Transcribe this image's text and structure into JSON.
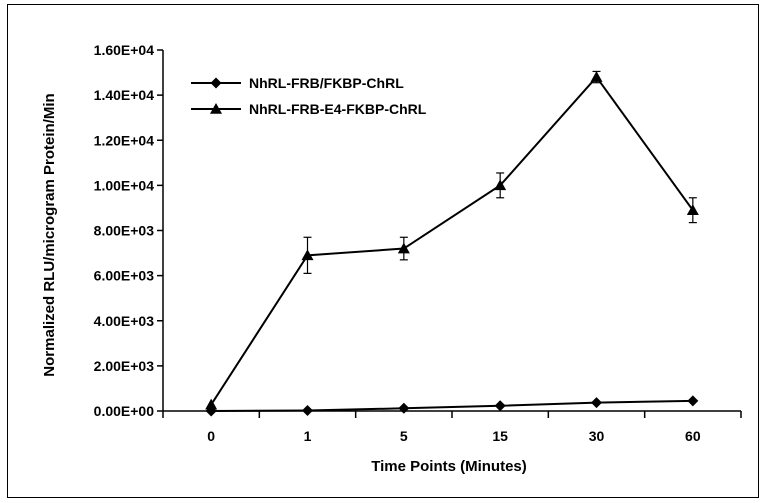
{
  "chart_data": {
    "type": "line",
    "title": "",
    "xlabel": "Time Points (Minutes)",
    "ylabel": "Normalized RLU/microgram Protein/Min",
    "categories": [
      "0",
      "1",
      "5",
      "15",
      "30",
      "60"
    ],
    "ylim": [
      0,
      16000
    ],
    "y_ticks": [
      0,
      2000,
      4000,
      6000,
      8000,
      10000,
      12000,
      14000,
      16000
    ],
    "y_tick_labels": [
      "0.00E+00",
      "2.00E+03",
      "4.00E+03",
      "6.00E+03",
      "8.00E+03",
      "1.00E+04",
      "1.20E+04",
      "1.40E+04",
      "1.60E+04"
    ],
    "grid": false,
    "legend": "top-left",
    "series": [
      {
        "name": "NhRL-FRB/FKBP-ChRL",
        "marker": "diamond",
        "color": "#000000",
        "values": [
          0,
          20,
          120,
          230,
          370,
          450
        ],
        "errors": [
          0,
          0,
          0,
          0,
          0,
          0
        ]
      },
      {
        "name": "NhRL-FRB-E4-FKBP-ChRL",
        "marker": "triangle",
        "color": "#000000",
        "values": [
          280,
          6900,
          7200,
          10000,
          14800,
          8900
        ],
        "errors": [
          0,
          800,
          500,
          550,
          250,
          550
        ]
      }
    ]
  }
}
